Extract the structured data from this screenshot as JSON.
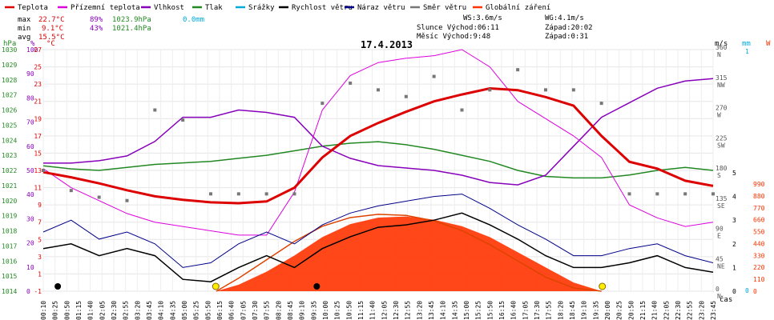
{
  "chart_data": {
    "type": "line",
    "title": "17.4.2013",
    "legend": [
      {
        "name": "Teplota",
        "color": "#dd0000"
      },
      {
        "name": "Přízemní teplota",
        "color": "#dd00dd"
      },
      {
        "name": "Vlhkost",
        "color": "#8800bb"
      },
      {
        "name": "Tlak",
        "color": "#228822"
      },
      {
        "name": "Srážky",
        "color": "#00aadd"
      },
      {
        "name": "Rychlost větru",
        "color": "#000000"
      },
      {
        "name": "Náraz větru",
        "color": "#000088"
      },
      {
        "name": "Směr větru",
        "color": "#777777"
      },
      {
        "name": "Globální záření",
        "color": "#ff3300"
      }
    ],
    "stats": {
      "max": {
        "label": "max",
        "temp": "22.7°C",
        "hum": "89%",
        "press": "1023.9hPa",
        "rain": "0.0mm"
      },
      "min": {
        "label": "min",
        "temp": "9.1°C",
        "hum": "43%",
        "press": "1021.4hPa"
      },
      "avg": {
        "label": "avg",
        "temp": "15.5°C"
      }
    },
    "info": {
      "ws": "WS:3.6m/s",
      "wg": "WG:4.1m/s",
      "sun": "Slunce Východ:06:11",
      "sun_set": "Západ:20:02",
      "moon": "Měsíc  Východ:9:48",
      "moon_set": "Západ:0:31"
    },
    "axes": {
      "hpa": {
        "unit": "hPa",
        "range": [
          1014,
          1030
        ],
        "ticks": [
          1030,
          1029,
          1028,
          1027,
          1026,
          1025,
          1024,
          1023,
          1022,
          1021,
          1020,
          1019,
          1018,
          1017,
          1016,
          1015,
          1014
        ]
      },
      "hum": {
        "unit": "%",
        "range": [
          0,
          100
        ],
        "ticks": [
          "100",
          "90",
          "80",
          "70",
          "60",
          "50",
          "40",
          "30",
          "20",
          "10",
          "0"
        ]
      },
      "temp": {
        "unit": "°C",
        "range": [
          -1,
          27
        ],
        "ticks": [
          "27",
          "25",
          "23",
          "21",
          "19",
          "17",
          "15",
          "13",
          "11",
          "9",
          "7",
          "5",
          "3",
          "1",
          "-1"
        ]
      },
      "dir": {
        "unit": "°",
        "range": [
          0,
          360
        ],
        "ticks": [
          {
            "deg": "360",
            "dir": "N"
          },
          {
            "deg": "315",
            "dir": "NW"
          },
          {
            "deg": "270",
            "dir": "W"
          },
          {
            "deg": "225",
            "dir": "SW"
          },
          {
            "deg": "180",
            "dir": "S"
          },
          {
            "deg": "135",
            "dir": "SE"
          },
          {
            "deg": "90",
            "dir": "E"
          },
          {
            "deg": "45",
            "dir": "NE"
          },
          {
            "deg": "0",
            "dir": "N"
          }
        ]
      },
      "ms": {
        "unit": "m/s",
        "ticks": [
          "5",
          "4",
          "3",
          "2",
          "1",
          "0"
        ]
      },
      "mm": {
        "unit": "mm",
        "ticks": [
          "1",
          "0"
        ]
      },
      "wm2": {
        "unit": "W",
        "range": [
          0,
          990
        ],
        "ticks": [
          "990",
          "880",
          "770",
          "660",
          "550",
          "440",
          "330",
          "220",
          "110",
          "0"
        ]
      },
      "x_unit": "čas",
      "x_ticks": [
        "00:10",
        "00:25",
        "00:50",
        "01:15",
        "01:40",
        "02:05",
        "02:30",
        "02:55",
        "03:20",
        "03:45",
        "04:10",
        "04:35",
        "05:00",
        "05:25",
        "05:50",
        "06:15",
        "06:40",
        "07:05",
        "07:30",
        "07:55",
        "08:20",
        "08:45",
        "09:10",
        "09:35",
        "10:00",
        "10:25",
        "10:50",
        "11:15",
        "11:40",
        "12:05",
        "12:30",
        "12:55",
        "13:20",
        "13:45",
        "14:10",
        "14:35",
        "15:00",
        "15:25",
        "15:50",
        "16:15",
        "16:40",
        "17:05",
        "17:30",
        "17:55",
        "18:20",
        "18:45",
        "19:10",
        "19:35",
        "20:00",
        "20:25",
        "20:50",
        "21:15",
        "21:40",
        "22:05",
        "22:30",
        "22:55",
        "23:20",
        "23:45"
      ]
    },
    "series": {
      "temp": {
        "x": [
          0,
          1,
          2,
          3,
          4,
          5,
          6,
          7,
          8,
          9,
          10,
          11,
          12,
          13,
          14,
          15,
          16,
          17,
          18,
          19,
          20,
          21,
          22,
          23,
          24
        ],
        "y": [
          12.8,
          12.2,
          11.5,
          10.7,
          10.0,
          9.6,
          9.3,
          9.2,
          9.4,
          11.0,
          14.5,
          17.0,
          18.5,
          19.8,
          21.0,
          21.8,
          22.5,
          22.3,
          21.5,
          20.5,
          17.0,
          14.0,
          13.2,
          11.8,
          11.2
        ]
      },
      "ground": {
        "x": [
          0,
          1,
          2,
          3,
          4,
          5,
          6,
          7,
          8,
          9,
          10,
          11,
          12,
          13,
          14,
          15,
          16,
          17,
          18,
          19,
          20,
          21,
          22,
          23,
          24
        ],
        "y": [
          13.2,
          11.0,
          9.5,
          8.0,
          7.0,
          6.5,
          6.0,
          5.5,
          5.5,
          10.5,
          20.0,
          24.0,
          25.5,
          26.0,
          26.3,
          27.0,
          25.0,
          21.0,
          19.0,
          17.0,
          14.5,
          9.0,
          7.5,
          6.5,
          7.0
        ]
      },
      "humidity": {
        "x": [
          0,
          1,
          2,
          3,
          4,
          5,
          6,
          7,
          8,
          9,
          10,
          11,
          12,
          13,
          14,
          15,
          16,
          17,
          18,
          19,
          20,
          21,
          22,
          23,
          24
        ],
        "y": [
          53,
          53,
          54,
          56,
          62,
          72,
          72,
          75,
          74,
          72,
          60,
          55,
          52,
          51,
          50,
          48,
          45,
          44,
          48,
          60,
          72,
          78,
          84,
          87,
          88
        ]
      },
      "pressure": {
        "x": [
          0,
          1,
          2,
          3,
          4,
          5,
          6,
          7,
          8,
          9,
          10,
          11,
          12,
          13,
          14,
          15,
          16,
          17,
          18,
          19,
          20,
          21,
          22,
          23,
          24
        ],
        "y": [
          1022.3,
          1022.1,
          1022.0,
          1022.2,
          1022.4,
          1022.5,
          1022.6,
          1022.8,
          1023.0,
          1023.3,
          1023.6,
          1023.8,
          1023.9,
          1023.7,
          1023.4,
          1023.0,
          1022.6,
          1022.0,
          1021.6,
          1021.5,
          1021.5,
          1021.7,
          1022.0,
          1022.2,
          1022.0
        ]
      },
      "radiation": {
        "x": [
          6.2,
          7,
          8,
          9,
          10,
          11,
          12,
          13,
          14,
          15,
          16,
          17,
          18,
          19,
          20
        ],
        "y": [
          0,
          60,
          180,
          330,
          500,
          620,
          680,
          690,
          660,
          600,
          500,
          360,
          220,
          80,
          0
        ]
      },
      "radiation_clear": {
        "x": [
          6.2,
          7,
          8,
          9,
          10,
          11,
          12,
          13,
          14,
          15,
          16,
          17,
          18,
          19,
          20
        ],
        "y": [
          0,
          120,
          290,
          460,
          600,
          680,
          710,
          700,
          650,
          560,
          430,
          280,
          130,
          30,
          0
        ]
      },
      "wind": {
        "x": [
          0,
          1,
          2,
          3,
          4,
          5,
          6,
          7,
          8,
          9,
          10,
          11,
          12,
          13,
          14,
          15,
          16,
          17,
          18,
          19,
          20,
          21,
          22,
          23,
          24
        ],
        "y": [
          1.8,
          2.0,
          1.5,
          1.8,
          1.5,
          0.5,
          0.4,
          1.0,
          1.5,
          1.0,
          1.8,
          2.3,
          2.7,
          2.8,
          3.0,
          3.3,
          2.8,
          2.2,
          1.5,
          1.0,
          1.0,
          1.2,
          1.5,
          1.0,
          0.8
        ]
      },
      "gust": {
        "x": [
          0,
          1,
          2,
          3,
          4,
          5,
          6,
          7,
          8,
          9,
          10,
          11,
          12,
          13,
          14,
          15,
          16,
          17,
          18,
          19,
          20,
          21,
          22,
          23,
          24
        ],
        "y": [
          2.5,
          3.0,
          2.2,
          2.5,
          2.0,
          1.0,
          1.2,
          2.0,
          2.5,
          2.0,
          2.8,
          3.3,
          3.6,
          3.8,
          4.0,
          4.1,
          3.5,
          2.8,
          2.2,
          1.5,
          1.5,
          1.8,
          2.0,
          1.5,
          1.2
        ]
      },
      "direction": {
        "x": [
          0,
          1,
          2,
          3,
          4,
          5,
          6,
          7,
          8,
          9,
          10,
          11,
          12,
          13,
          14,
          15,
          16,
          17,
          18,
          19,
          20,
          21,
          22,
          23,
          24
        ],
        "y": [
          180,
          150,
          140,
          135,
          270,
          255,
          145,
          145,
          145,
          145,
          280,
          310,
          300,
          290,
          320,
          270,
          300,
          330,
          300,
          300,
          280,
          145,
          145,
          145,
          145
        ]
      }
    },
    "sun_markers": {
      "sunrise": 6.18,
      "sunset": 20.03
    },
    "moon_markers": {
      "rise": 9.8,
      "set": 0.52
    }
  }
}
